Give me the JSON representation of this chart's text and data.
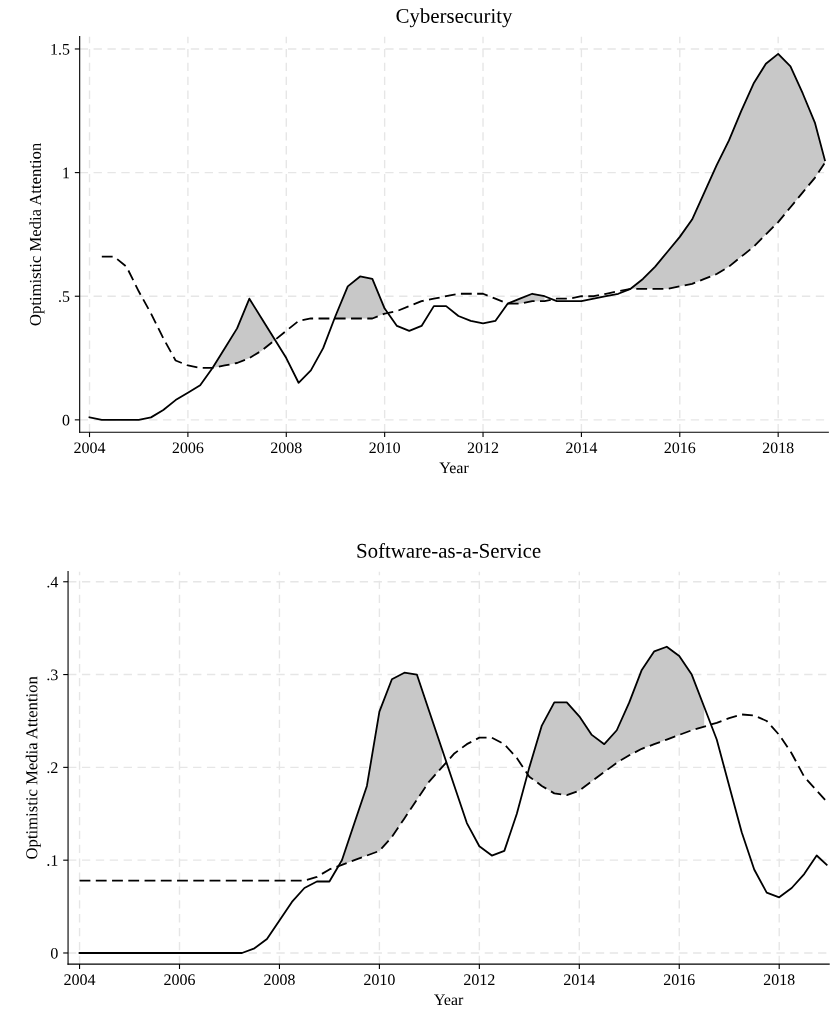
{
  "chart_data": [
    {
      "type": "line",
      "title": "Cybersecurity",
      "xlabel": "Year",
      "ylabel": "Optimistic Media Attention",
      "x": [
        2004.0,
        2004.25,
        2004.5,
        2004.75,
        2005.0,
        2005.25,
        2005.5,
        2005.75,
        2006.0,
        2006.25,
        2006.5,
        2006.75,
        2007.0,
        2007.25,
        2007.5,
        2007.75,
        2008.0,
        2008.25,
        2008.5,
        2008.75,
        2009.0,
        2009.25,
        2009.5,
        2009.75,
        2010.0,
        2010.25,
        2010.5,
        2010.75,
        2011.0,
        2011.25,
        2011.5,
        2011.75,
        2012.0,
        2012.25,
        2012.5,
        2012.75,
        2013.0,
        2013.25,
        2013.5,
        2013.75,
        2014.0,
        2014.25,
        2014.5,
        2014.75,
        2015.0,
        2015.25,
        2015.5,
        2015.75,
        2016.0,
        2016.25,
        2016.5,
        2016.75,
        2017.0,
        2017.25,
        2017.5,
        2017.75,
        2018.0,
        2018.25,
        2018.5,
        2018.75,
        2018.95
      ],
      "series": [
        {
          "color": "#000000",
          "line_style": "solid",
          "values": [
            0.01,
            0,
            0,
            0,
            0,
            0.01,
            0.04,
            0.08,
            0.11,
            0.14,
            0.21,
            0.29,
            0.37,
            0.49,
            0.41,
            0.33,
            0.25,
            0.15,
            0.2,
            0.29,
            0.42,
            0.54,
            0.58,
            0.57,
            0.45,
            0.38,
            0.36,
            0.38,
            0.46,
            0.46,
            0.42,
            0.4,
            0.39,
            0.4,
            0.47,
            0.49,
            0.51,
            0.5,
            0.48,
            0.48,
            0.48,
            0.49,
            0.5,
            0.51,
            0.53,
            0.57,
            0.62,
            0.68,
            0.74,
            0.81,
            0.92,
            1.03,
            1.13,
            1.25,
            1.36,
            1.44,
            1.48,
            1.43,
            1.32,
            1.2,
            1.05
          ],
          "upper": [
            null,
            null,
            null,
            null,
            null,
            null,
            null,
            null,
            null,
            null,
            0.21,
            0.29,
            0.37,
            0.49,
            0.41,
            0.33,
            null,
            null,
            null,
            null,
            0.42,
            0.54,
            0.58,
            0.57,
            0.45,
            null,
            null,
            null,
            null,
            null,
            null,
            null,
            null,
            null,
            0.47,
            0.49,
            0.51,
            0.5,
            null,
            null,
            null,
            null,
            null,
            null,
            0.53,
            0.57,
            0.62,
            0.68,
            0.74,
            0.81,
            0.92,
            1.03,
            1.13,
            1.25,
            1.36,
            1.44,
            1.48,
            1.43,
            1.32,
            1.2,
            1.05
          ],
          "lower": [
            null,
            null,
            null,
            null,
            null,
            null,
            null,
            null,
            null,
            null,
            0.21,
            0.22,
            0.23,
            0.25,
            0.28,
            0.32,
            null,
            null,
            null,
            null,
            0.41,
            0.41,
            0.41,
            0.41,
            0.43,
            null,
            null,
            null,
            null,
            null,
            null,
            null,
            null,
            null,
            0.47,
            0.47,
            0.48,
            0.48,
            null,
            null,
            null,
            null,
            null,
            null,
            0.53,
            0.53,
            0.53,
            0.53,
            0.54,
            0.55,
            0.57,
            0.59,
            0.62,
            0.66,
            0.7,
            0.75,
            0.8,
            0.86,
            0.92,
            0.98,
            1.04
          ]
        },
        {
          "color": "#000000",
          "line_style": "dashed",
          "values": [
            null,
            0.66,
            0.66,
            0.62,
            0.52,
            0.43,
            0.33,
            0.24,
            0.22,
            0.21,
            0.21,
            0.22,
            0.23,
            0.25,
            0.28,
            0.32,
            0.36,
            0.4,
            0.41,
            0.41,
            0.41,
            0.41,
            0.41,
            0.41,
            0.43,
            0.44,
            0.46,
            0.48,
            0.49,
            0.5,
            0.51,
            0.51,
            0.51,
            0.49,
            0.47,
            0.47,
            0.48,
            0.48,
            0.49,
            0.49,
            0.5,
            0.5,
            0.51,
            0.52,
            0.53,
            0.53,
            0.53,
            0.53,
            0.54,
            0.55,
            0.57,
            0.59,
            0.62,
            0.66,
            0.7,
            0.75,
            0.8,
            0.86,
            0.92,
            0.98,
            1.04
          ]
        }
      ],
      "xlim": [
        2003.8,
        2019.02
      ],
      "xticks": [
        2004,
        2006,
        2008,
        2010,
        2012,
        2014,
        2016,
        2018
      ],
      "ylim": [
        -0.05,
        1.55
      ],
      "yticks": [
        0,
        {
          "value": 0.5,
          "label": ".5"
        },
        1,
        1.5
      ],
      "grid": true
    },
    {
      "type": "line",
      "title": "Software-as-a-Service",
      "xlabel": "Year",
      "ylabel": "Optimistic Media Attention",
      "x": [
        2004.0,
        2004.25,
        2004.5,
        2004.75,
        2005.0,
        2005.25,
        2005.5,
        2005.75,
        2006.0,
        2006.25,
        2006.5,
        2006.75,
        2007.0,
        2007.25,
        2007.5,
        2007.75,
        2008.0,
        2008.25,
        2008.5,
        2008.75,
        2009.0,
        2009.25,
        2009.5,
        2009.75,
        2010.0,
        2010.25,
        2010.5,
        2010.75,
        2011.0,
        2011.25,
        2011.5,
        2011.75,
        2012.0,
        2012.25,
        2012.5,
        2012.75,
        2013.0,
        2013.25,
        2013.5,
        2013.75,
        2014.0,
        2014.25,
        2014.5,
        2014.75,
        2015.0,
        2015.25,
        2015.5,
        2015.75,
        2016.0,
        2016.25,
        2016.5,
        2016.75,
        2017.0,
        2017.25,
        2017.5,
        2017.75,
        2018.0,
        2018.25,
        2018.5,
        2018.75,
        2018.95
      ],
      "series": [
        {
          "color": "#000000",
          "line_style": "solid",
          "values": [
            0,
            0,
            0,
            0,
            0,
            0,
            0,
            0,
            0,
            0,
            0,
            0,
            0,
            0,
            0.005,
            0.015,
            0.035,
            0.055,
            0.07,
            0.077,
            0.077,
            0.1,
            0.14,
            0.18,
            0.26,
            0.295,
            0.302,
            0.3,
            0.26,
            0.22,
            0.18,
            0.14,
            0.115,
            0.105,
            0.11,
            0.15,
            0.2,
            0.245,
            0.27,
            0.27,
            0.255,
            0.235,
            0.225,
            0.24,
            0.27,
            0.305,
            0.325,
            0.33,
            0.32,
            0.3,
            0.265,
            0.23,
            0.18,
            0.13,
            0.09,
            0.065,
            0.06,
            0.07,
            0.085,
            0.105,
            0.095
          ],
          "upper": [
            null,
            null,
            null,
            null,
            null,
            null,
            null,
            null,
            null,
            null,
            null,
            null,
            null,
            null,
            null,
            null,
            null,
            null,
            null,
            null,
            null,
            0.1,
            0.14,
            0.18,
            0.26,
            0.295,
            0.302,
            0.3,
            0.26,
            0.22,
            null,
            null,
            null,
            null,
            null,
            null,
            0.2,
            0.245,
            0.27,
            0.27,
            0.255,
            0.235,
            0.225,
            0.24,
            0.27,
            0.305,
            0.325,
            0.33,
            0.32,
            0.3,
            0.265,
            null,
            null,
            null,
            null,
            null,
            null,
            null,
            null,
            null,
            null
          ],
          "lower": [
            null,
            null,
            null,
            null,
            null,
            null,
            null,
            null,
            null,
            null,
            null,
            null,
            null,
            null,
            null,
            null,
            null,
            null,
            null,
            null,
            null,
            0.095,
            0.1,
            0.105,
            0.11,
            0.125,
            0.145,
            0.165,
            0.185,
            0.2,
            null,
            null,
            null,
            null,
            null,
            null,
            0.19,
            0.18,
            0.172,
            0.17,
            0.175,
            0.185,
            0.195,
            0.205,
            0.213,
            0.22,
            0.225,
            0.23,
            0.235,
            0.24,
            0.244,
            null,
            null,
            null,
            null,
            null,
            null,
            null,
            null,
            null,
            null
          ]
        },
        {
          "color": "#000000",
          "line_style": "dashed",
          "values": [
            0.078,
            0.078,
            0.078,
            0.078,
            0.078,
            0.078,
            0.078,
            0.078,
            0.078,
            0.078,
            0.078,
            0.078,
            0.078,
            0.078,
            0.078,
            0.078,
            0.078,
            0.078,
            0.078,
            0.082,
            0.09,
            0.095,
            0.1,
            0.105,
            0.11,
            0.125,
            0.145,
            0.165,
            0.185,
            0.2,
            0.215,
            0.225,
            0.232,
            0.232,
            0.225,
            0.21,
            0.19,
            0.18,
            0.172,
            0.17,
            0.175,
            0.185,
            0.195,
            0.205,
            0.213,
            0.22,
            0.225,
            0.23,
            0.235,
            0.24,
            0.244,
            0.248,
            0.253,
            0.257,
            0.256,
            0.25,
            0.235,
            0.215,
            0.19,
            0.175,
            0.163
          ]
        }
      ],
      "xlim": [
        2003.77,
        2019.0
      ],
      "xticks": [
        2004,
        2006,
        2008,
        2010,
        2012,
        2014,
        2016,
        2018
      ],
      "ylim": [
        -0.012,
        0.411
      ],
      "yticks": [
        0,
        {
          "value": 0.1,
          "label": ".1"
        },
        {
          "value": 0.2,
          "label": ".2"
        },
        {
          "value": 0.3,
          "label": ".3"
        },
        {
          "value": 0.4,
          "label": ".4"
        }
      ],
      "grid": true
    }
  ]
}
